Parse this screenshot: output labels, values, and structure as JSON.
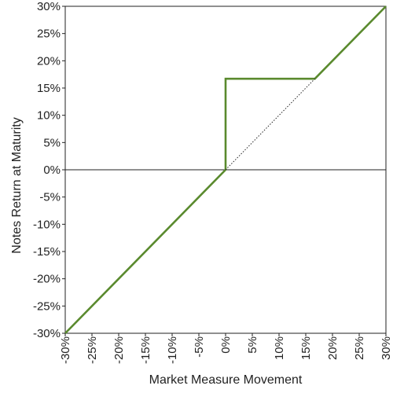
{
  "chart_data": {
    "type": "line",
    "title": "",
    "xlabel": "Market Measure Movement",
    "ylabel": "Notes Return at Maturity",
    "xlim": [
      -30,
      30
    ],
    "ylim": [
      -30,
      30
    ],
    "x_ticks": [
      "-30%",
      "-25%",
      "-20%",
      "-15%",
      "-10%",
      "-5%",
      "0%",
      "5%",
      "10%",
      "15%",
      "20%",
      "25%",
      "30%"
    ],
    "y_ticks": [
      "30%",
      "25%",
      "20%",
      "15%",
      "10%",
      "5%",
      "0%",
      "-5%",
      "-10%",
      "-15%",
      "-20%",
      "-25%",
      "-30%"
    ],
    "grid": false,
    "series": [
      {
        "style": "solid",
        "color": "#5a8a2e",
        "x": [
          -30,
          0,
          0,
          16.7,
          30
        ],
        "y": [
          -30,
          0,
          16.7,
          16.7,
          30
        ]
      },
      {
        "style": "dotted",
        "color": "#222222",
        "x": [
          0,
          16.7
        ],
        "y": [
          0,
          16.7
        ]
      }
    ],
    "reference_lines": [
      {
        "axis": "y",
        "value": 0,
        "color": "#222222"
      }
    ]
  }
}
